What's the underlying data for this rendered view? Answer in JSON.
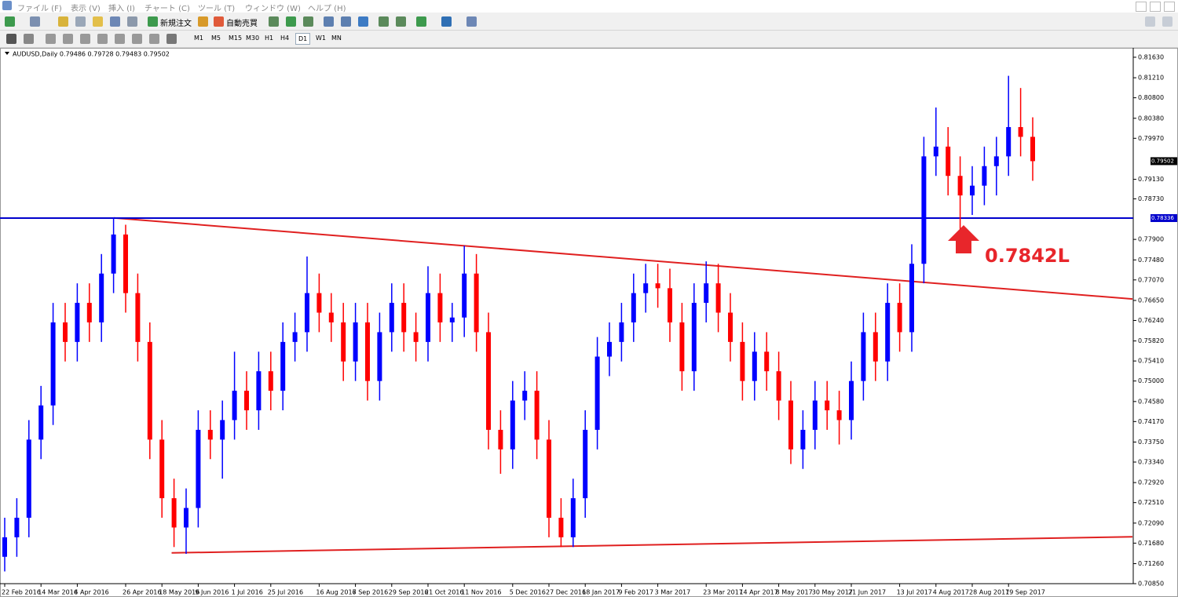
{
  "ui": {
    "menu": [
      "ファイル (F)",
      "表示 (V)",
      "挿入 (I)",
      "チャート (C)",
      "ツール (T)",
      "ウィンドウ (W)",
      "ヘルプ (H)"
    ],
    "toolbar": [
      "新規注文",
      "自動売買"
    ],
    "timeframes": [
      "M1",
      "M5",
      "M15",
      "M30",
      "H1",
      "H4",
      "D1",
      "W1",
      "MN"
    ]
  },
  "chart_data": {
    "type": "candlestick",
    "title": "AUDUSD,Daily  0.79486 0.79728 0.79483 0.79502",
    "up_color": "#0000ff",
    "down_color": "#ff0000",
    "categories": [
      "22 Feb 2016",
      null,
      null,
      "14 Mar 2016",
      null,
      null,
      "4 Apr 2016",
      null,
      null,
      null,
      "26 Apr 2016",
      null,
      null,
      "18 May 2016",
      null,
      null,
      "9 Jun 2016",
      null,
      null,
      "1 Jul 2016",
      null,
      null,
      "25 Jul 2016",
      null,
      null,
      null,
      "16 Aug 2016",
      null,
      null,
      "7 Sep 2016",
      null,
      null,
      "29 Sep 2016",
      null,
      null,
      "21 Oct 2016",
      null,
      null,
      "11 Nov 2016",
      null,
      null,
      null,
      "5 Dec 2016",
      null,
      null,
      "27 Dec 2016",
      null,
      null,
      "18 Jan 2017",
      null,
      null,
      "9 Feb 2017",
      null,
      null,
      "3 Mar 2017",
      null,
      null,
      null,
      "23 Mar 2017",
      null,
      null,
      "14 Apr 2017",
      null,
      null,
      "8 May 2017",
      null,
      null,
      "30 May 2017",
      null,
      null,
      "21 Jun 2017",
      null,
      null,
      null,
      "13 Jul 2017",
      null,
      null,
      "4 Aug 2017",
      null,
      null,
      "28 Aug 2017",
      null,
      null,
      "19 Sep 2017",
      null,
      null
    ],
    "open": [
      0.714,
      0.718,
      0.722,
      0.738,
      0.745,
      0.762,
      0.758,
      0.766,
      0.762,
      0.772,
      0.78,
      0.768,
      0.758,
      0.738,
      0.726,
      0.72,
      0.724,
      0.74,
      0.738,
      0.742,
      0.748,
      0.744,
      0.752,
      0.748,
      0.758,
      0.76,
      0.768,
      0.764,
      0.762,
      0.754,
      0.762,
      0.75,
      0.76,
      0.766,
      0.76,
      0.758,
      0.768,
      0.762,
      0.763,
      0.772,
      0.76,
      0.74,
      0.736,
      0.746,
      0.748,
      0.738,
      0.722,
      0.718,
      0.726,
      0.74,
      0.755,
      0.758,
      0.762,
      0.768,
      0.77,
      0.769,
      0.762,
      0.752,
      0.766,
      0.77,
      0.764,
      0.758,
      0.75,
      0.756,
      0.752,
      0.746,
      0.736,
      0.74,
      0.746,
      0.744,
      0.742,
      0.75,
      0.76,
      0.754,
      0.766,
      0.76,
      0.774,
      0.796,
      0.798,
      0.792,
      0.788,
      0.79,
      0.794,
      0.796,
      0.802,
      0.8
    ],
    "high": [
      0.722,
      0.726,
      0.742,
      0.749,
      0.766,
      0.766,
      0.77,
      0.77,
      0.776,
      0.7835,
      0.782,
      0.772,
      0.762,
      0.742,
      0.73,
      0.728,
      0.744,
      0.744,
      0.746,
      0.756,
      0.752,
      0.756,
      0.756,
      0.762,
      0.764,
      0.7755,
      0.772,
      0.768,
      0.766,
      0.766,
      0.766,
      0.764,
      0.77,
      0.77,
      0.764,
      0.7735,
      0.772,
      0.766,
      0.7777,
      0.776,
      0.764,
      0.744,
      0.75,
      0.752,
      0.752,
      0.742,
      0.726,
      0.73,
      0.744,
      0.759,
      0.762,
      0.766,
      0.772,
      0.774,
      0.774,
      0.773,
      0.766,
      0.77,
      0.7745,
      0.774,
      0.768,
      0.762,
      0.76,
      0.76,
      0.756,
      0.75,
      0.744,
      0.75,
      0.75,
      0.748,
      0.754,
      0.764,
      0.764,
      0.77,
      0.77,
      0.778,
      0.8,
      0.806,
      0.802,
      0.796,
      0.794,
      0.798,
      0.8,
      0.8125,
      0.81,
      0.804
    ],
    "low": [
      0.711,
      0.714,
      0.718,
      0.734,
      0.741,
      0.754,
      0.754,
      0.758,
      0.758,
      0.768,
      0.764,
      0.754,
      0.734,
      0.722,
      0.716,
      0.7146,
      0.72,
      0.734,
      0.73,
      0.738,
      0.74,
      0.74,
      0.744,
      0.744,
      0.754,
      0.756,
      0.76,
      0.758,
      0.75,
      0.75,
      0.746,
      0.746,
      0.756,
      0.756,
      0.754,
      0.754,
      0.758,
      0.758,
      0.759,
      0.756,
      0.736,
      0.731,
      0.732,
      0.742,
      0.734,
      0.718,
      0.716,
      0.716,
      0.722,
      0.736,
      0.751,
      0.754,
      0.758,
      0.764,
      0.765,
      0.758,
      0.748,
      0.748,
      0.762,
      0.76,
      0.754,
      0.746,
      0.746,
      0.748,
      0.742,
      0.733,
      0.732,
      0.736,
      0.74,
      0.737,
      0.738,
      0.746,
      0.75,
      0.75,
      0.756,
      0.756,
      0.77,
      0.792,
      0.788,
      0.7808,
      0.784,
      0.786,
      0.788,
      0.792,
      0.796,
      0.791
    ],
    "close": [
      0.718,
      0.722,
      0.738,
      0.745,
      0.762,
      0.758,
      0.766,
      0.762,
      0.772,
      0.78,
      0.768,
      0.758,
      0.738,
      0.726,
      0.72,
      0.724,
      0.74,
      0.738,
      0.742,
      0.748,
      0.744,
      0.752,
      0.748,
      0.758,
      0.76,
      0.768,
      0.764,
      0.762,
      0.754,
      0.762,
      0.75,
      0.76,
      0.766,
      0.76,
      0.758,
      0.768,
      0.762,
      0.763,
      0.772,
      0.76,
      0.74,
      0.736,
      0.746,
      0.748,
      0.738,
      0.722,
      0.718,
      0.726,
      0.74,
      0.755,
      0.758,
      0.762,
      0.768,
      0.77,
      0.769,
      0.762,
      0.752,
      0.766,
      0.77,
      0.764,
      0.758,
      0.75,
      0.756,
      0.752,
      0.746,
      0.736,
      0.74,
      0.746,
      0.744,
      0.742,
      0.75,
      0.76,
      0.754,
      0.766,
      0.76,
      0.774,
      0.796,
      0.798,
      0.792,
      0.788,
      0.79,
      0.794,
      0.796,
      0.802,
      0.8,
      0.79502
    ],
    "ylim": [
      0.7085,
      0.8179
    ],
    "yticks": [
      {
        "value": 0.8163,
        "label": "0.81630"
      },
      {
        "value": 0.8121,
        "label": "0.81210"
      },
      {
        "value": 0.808,
        "label": "0.80800"
      },
      {
        "value": 0.8038,
        "label": "0.80380"
      },
      {
        "value": 0.7997,
        "label": "0.79970"
      },
      {
        "value": 0.7913,
        "label": "0.79130"
      },
      {
        "value": 0.7873,
        "label": "0.78730"
      },
      {
        "value": 0.779,
        "label": "0.77900"
      },
      {
        "value": 0.7748,
        "label": "0.77480"
      },
      {
        "value": 0.7707,
        "label": "0.77070"
      },
      {
        "value": 0.7665,
        "label": "0.76650"
      },
      {
        "value": 0.7624,
        "label": "0.76240"
      },
      {
        "value": 0.7582,
        "label": "0.75820"
      },
      {
        "value": 0.7541,
        "label": "0.75410"
      },
      {
        "value": 0.75,
        "label": "0.75000"
      },
      {
        "value": 0.7458,
        "label": "0.74580"
      },
      {
        "value": 0.7417,
        "label": "0.74170"
      },
      {
        "value": 0.7375,
        "label": "0.73750"
      },
      {
        "value": 0.7334,
        "label": "0.73340"
      },
      {
        "value": 0.7292,
        "label": "0.72920"
      },
      {
        "value": 0.7251,
        "label": "0.72510"
      },
      {
        "value": 0.7209,
        "label": "0.72090"
      },
      {
        "value": 0.7168,
        "label": "0.71680"
      },
      {
        "value": 0.7126,
        "label": "0.71260"
      },
      {
        "value": 0.7085,
        "label": "0.70850"
      }
    ],
    "hline": {
      "value": 0.78336,
      "label": "0.78336",
      "color": "#0000cc"
    },
    "current_price": {
      "value": 0.79502,
      "label": "0.79502"
    },
    "trendlines": [
      {
        "x": [
          9,
          93.25
        ],
        "y": [
          0.7834,
          0.7668
        ],
        "color": "#e02020"
      },
      {
        "x": [
          13.8,
          93.25
        ],
        "y": [
          0.7148,
          0.7181
        ],
        "color": "#e02020"
      }
    ],
    "annotation": {
      "text": "0.7842L",
      "color": "#e8262b"
    }
  }
}
